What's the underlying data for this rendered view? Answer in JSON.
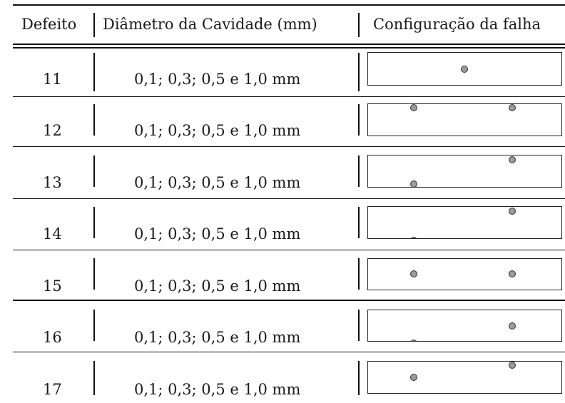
{
  "headers": {
    "defeito": "Defeito",
    "diametro": "Diâmetro da Cavidade (mm)",
    "configuracao": "Configuração da falha"
  },
  "rows": [
    {
      "defeito": "11",
      "diametro": "0,1; 0,3; 0,5 e 1,0 mm",
      "configuracao": "one cavity, center top"
    },
    {
      "defeito": "12",
      "diametro": "0,1; 0,3; 0,5 e 1,0 mm",
      "configuracao": "two cavities at top edge, left-center and right"
    },
    {
      "defeito": "13",
      "diametro": "0,1; 0,3; 0,5 e 1,0 mm",
      "configuracao": "one cavity top edge right, one bottom edge left-center"
    },
    {
      "defeito": "14",
      "diametro": "0,1; 0,3; 0,5 e 1,0 mm",
      "configuracao": "one cavity top edge right, one partial at bottom edge left-center"
    },
    {
      "defeito": "15",
      "diametro": "0,1; 0,3; 0,5 e 1,0 mm",
      "configuracao": "two cavities mid height, left-center and right"
    },
    {
      "defeito": "16",
      "diametro": "0,1; 0,3; 0,5 e 1,0 mm",
      "configuracao": "one cavity upper right, one partial at bottom edge left-center"
    },
    {
      "defeito": "17",
      "diametro": "0,1; 0,3; 0,5 e 1,0 mm",
      "configuracao": "one cavity top edge right, one mid left-center"
    }
  ],
  "colors": {
    "cavity_fill": "#9a9a9a",
    "line": "#111111"
  }
}
